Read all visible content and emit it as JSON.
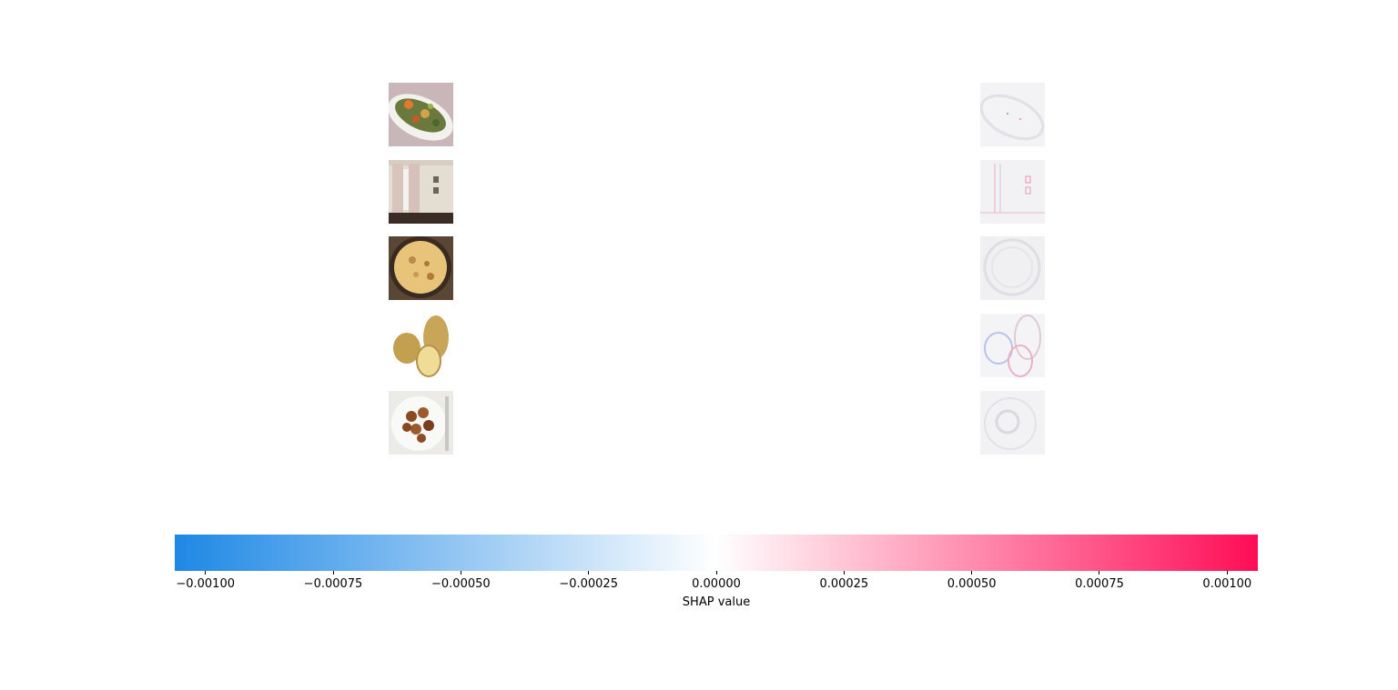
{
  "chart_data": {
    "type": "heatmap",
    "title": "",
    "images": [
      {
        "name": "vegetable-dish",
        "left_icon": "vegetable-plate-photo",
        "right_icon": "shap-map-faint"
      },
      {
        "name": "curtains-room",
        "left_icon": "curtain-room-photo",
        "right_icon": "shap-map-faint"
      },
      {
        "name": "omelette-pan",
        "left_icon": "frittata-pan-photo",
        "right_icon": "shap-map-faint"
      },
      {
        "name": "potatoes",
        "left_icon": "potatoes-photo",
        "right_icon": "shap-map-faint"
      },
      {
        "name": "chicken-plate",
        "left_icon": "chicken-plate-photo",
        "right_icon": "shap-map-faint"
      }
    ],
    "colorbar": {
      "label": "SHAP value",
      "range": [
        -0.00106,
        0.00106
      ],
      "ticks": [
        -0.001,
        -0.00075,
        -0.0005,
        -0.00025,
        0.0,
        0.00025,
        0.0005,
        0.00075,
        0.001
      ],
      "tick_labels": [
        "−0.00100",
        "−0.00075",
        "−0.00050",
        "−0.00025",
        "0.00000",
        "0.00025",
        "0.00050",
        "0.00075",
        "0.00100"
      ],
      "colors": {
        "negative": "#1e88e5",
        "zero": "#ffffff",
        "positive": "#ff0d57"
      }
    }
  }
}
